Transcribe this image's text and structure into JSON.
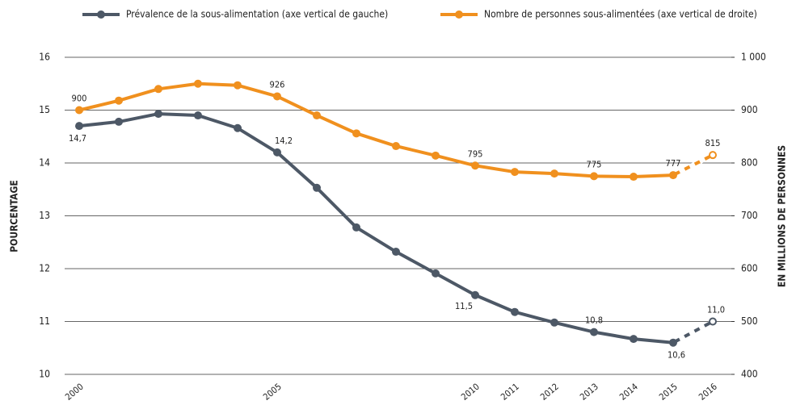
{
  "chart_data": {
    "type": "line",
    "legend": "top",
    "categories": [
      "2000",
      null,
      null,
      null,
      null,
      "2005",
      null,
      null,
      null,
      null,
      "2010",
      "2011",
      "2012",
      "2013",
      "2014",
      "2015",
      "2016"
    ],
    "series": [
      {
        "name": "Prévalence de la sous-alimentation (axe vertical de gauche)",
        "color": "#4d5866",
        "axis": "y",
        "dashed_last": true,
        "values": [
          14.7,
          14.78,
          14.93,
          14.9,
          14.66,
          14.2,
          13.53,
          12.78,
          12.32,
          11.91,
          11.5,
          11.18,
          10.98,
          10.8,
          10.67,
          10.6,
          11.0
        ],
        "value_labels": [
          "14,7",
          null,
          null,
          null,
          null,
          "14,2",
          null,
          null,
          null,
          null,
          "11,5",
          null,
          null,
          "10,8",
          null,
          "10,6",
          "11,0"
        ]
      },
      {
        "name": "Nombre de personnes sous-alimentées (axe vertical de droite)",
        "color": "#f0901e",
        "axis": "y2",
        "dashed_last": true,
        "values": [
          900,
          918,
          940,
          950,
          947,
          926,
          890,
          856,
          832,
          814,
          795,
          783,
          780,
          775,
          774,
          777,
          815
        ],
        "value_labels": [
          "900",
          null,
          null,
          null,
          null,
          "926",
          null,
          null,
          null,
          null,
          "795",
          null,
          null,
          "775",
          null,
          "777",
          "815"
        ]
      }
    ],
    "ylabel": "POURCENTAGE",
    "y2label": "EN MILLIONS DE PERSONNES",
    "ylim": [
      10,
      16
    ],
    "yticks": [
      10,
      11,
      12,
      13,
      14,
      15,
      16
    ],
    "y2lim": [
      400,
      1000
    ],
    "y2ticks": [
      400,
      500,
      600,
      700,
      800,
      900,
      {
        "value": 1000,
        "label": "1 000"
      }
    ],
    "grid": true
  }
}
